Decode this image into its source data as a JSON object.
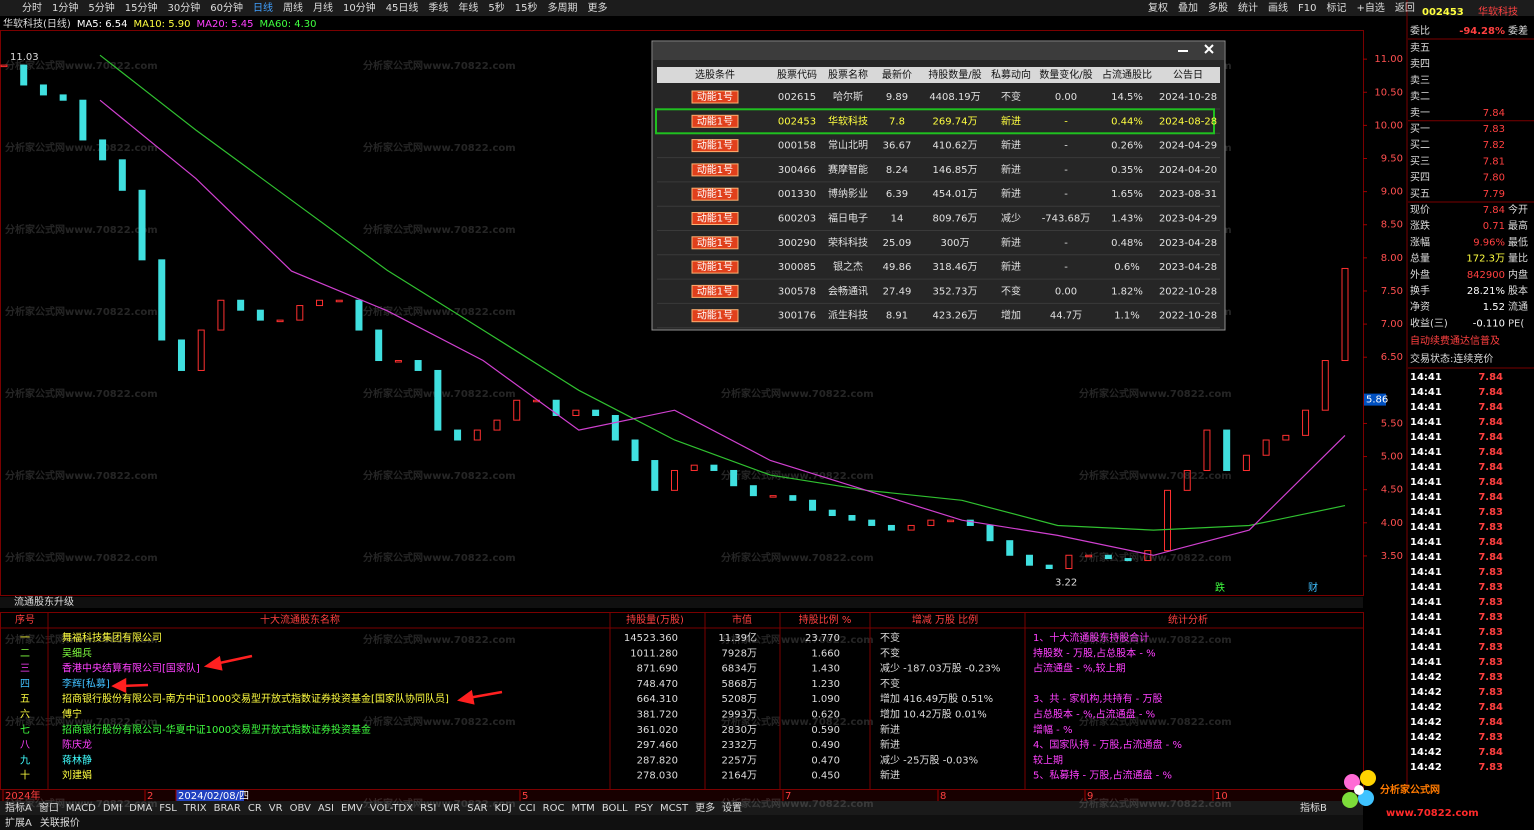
{
  "toolbar": {
    "periods": [
      "分时",
      "1分钟",
      "5分钟",
      "15分钟",
      "30分钟",
      "60分钟",
      "日线",
      "周线",
      "月线",
      "10分钟",
      "45日线",
      "季线",
      "年线",
      "5秒",
      "15秒",
      "多周期",
      "更多"
    ],
    "active_index": 6,
    "tools": [
      "复权",
      "叠加",
      "多股",
      "统计",
      "画线",
      "F10",
      "标记",
      "+自选",
      "返回"
    ]
  },
  "chart": {
    "legend": [
      "华软科技(日线)",
      "MA5: 6.54",
      "MA10: 5.90",
      "MA20: 5.45",
      "MA60: 4.30"
    ],
    "ylim": [
      2.91,
      11.44
    ],
    "yticks": [
      {
        "value": 11,
        "label": "11.00"
      },
      {
        "value": 10.5,
        "label": "10.50"
      },
      {
        "value": 10,
        "label": "10.00"
      },
      {
        "value": 9.5,
        "label": "9.50"
      },
      {
        "value": 9,
        "label": "9.00"
      },
      {
        "value": 8.5,
        "label": "8.50"
      },
      {
        "value": 8,
        "label": "8.00"
      },
      {
        "value": 7.5,
        "label": "7.50"
      },
      {
        "value": 7,
        "label": "7.00"
      },
      {
        "value": 6.5,
        "label": "6.50"
      },
      {
        "value": 5.5,
        "label": "5.50"
      },
      {
        "value": 5,
        "label": "5.00"
      },
      {
        "value": 4.5,
        "label": "4.50"
      },
      {
        "value": 4,
        "label": "4.00"
      },
      {
        "value": 3.5,
        "label": "3.50"
      }
    ],
    "current": {
      "value": 5.86,
      "label": "5.86"
    },
    "high_label": {
      "value": 11.03,
      "label": "11.03"
    },
    "low_label": {
      "value": 3.22,
      "label": "3.22"
    },
    "close": [
      10.91,
      10.61,
      10.46,
      10.38,
      9.78,
      9.48,
      9.02,
      7.97,
      6.76,
      6.3,
      6.91,
      7.36,
      7.21,
      7.06,
      7.06,
      7.28,
      7.36,
      7.36,
      6.91,
      6.45,
      6.45,
      6.3,
      5.4,
      5.25,
      5.4,
      5.55,
      5.85,
      5.85,
      5.62,
      5.7,
      5.62,
      5.25,
      4.94,
      4.49,
      4.79,
      4.87,
      4.79,
      4.56,
      4.41,
      4.41,
      4.34,
      4.19,
      4.11,
      4.04,
      3.96,
      3.89,
      3.96,
      4.04,
      4.04,
      3.96,
      3.73,
      3.51,
      3.36,
      3.31,
      3.51,
      3.51,
      3.46,
      3.43,
      3.58,
      4.49,
      4.79,
      5.4,
      4.79,
      5.02,
      5.25,
      5.32,
      5.7,
      6.45,
      7.84
    ],
    "ma20": [
      10.38,
      9.2,
      7.8,
      7.2,
      6.45,
      5.4,
      5.7,
      4.94,
      4.49,
      4.04,
      3.81,
      3.51,
      3.89,
      5.32
    ],
    "ma60": [
      11.06,
      9.93,
      8.87,
      7.81,
      6.91,
      6.0,
      5.25,
      4.72,
      4.49,
      4.34,
      3.96,
      3.89,
      3.96,
      4.26
    ],
    "markers": [
      "跌",
      "财"
    ]
  },
  "watermark": "分析家公式网www.70822.com",
  "popup": {
    "headers": [
      "选股条件",
      "股票代码",
      "股票名称",
      "最新价",
      "持股数量/股",
      "私募动向",
      "数量变化/股",
      "占流通股比",
      "公告日"
    ],
    "selected_row": 1,
    "rows": [
      [
        "动能1号",
        "002615",
        "哈尔斯",
        "9.89",
        "4408.19万",
        "不变",
        "0.00",
        "14.5%",
        "2024-10-28"
      ],
      [
        "动能1号",
        "002453",
        "华软科技",
        "7.8",
        "269.74万",
        "新进",
        "-",
        "0.44%",
        "2024-08-28"
      ],
      [
        "动能1号",
        "000158",
        "常山北明",
        "36.67",
        "410.62万",
        "新进",
        "-",
        "0.26%",
        "2024-04-29"
      ],
      [
        "动能1号",
        "300466",
        "赛摩智能",
        "8.24",
        "146.85万",
        "新进",
        "-",
        "0.35%",
        "2024-04-20"
      ],
      [
        "动能1号",
        "001330",
        "博纳影业",
        "6.39",
        "454.01万",
        "新进",
        "-",
        "1.65%",
        "2023-08-31"
      ],
      [
        "动能1号",
        "600203",
        "福日电子",
        "14",
        "809.76万",
        "减少",
        "-743.68万",
        "1.43%",
        "2023-04-29"
      ],
      [
        "动能1号",
        "300290",
        "荣科科技",
        "25.09",
        "300万",
        "新进",
        "-",
        "0.48%",
        "2023-04-28"
      ],
      [
        "动能1号",
        "300085",
        "银之杰",
        "49.86",
        "318.46万",
        "新进",
        "-",
        "0.6%",
        "2023-04-28"
      ],
      [
        "动能1号",
        "300578",
        "会畅通讯",
        "27.49",
        "352.73万",
        "不变",
        "0.00",
        "1.82%",
        "2022-10-28"
      ],
      [
        "动能1号",
        "300176",
        "派生科技",
        "8.91",
        "423.26万",
        "增加",
        "44.7万",
        "1.1%",
        "2022-10-28"
      ]
    ]
  },
  "quote": {
    "code": "002453",
    "name": "华软科技",
    "weibi": [
      "委比",
      "-94.28%",
      "委差"
    ],
    "book": [
      {
        "label": "卖五"
      },
      {
        "label": "卖四"
      },
      {
        "label": "卖三"
      },
      {
        "label": "卖二"
      },
      {
        "label": "卖一",
        "price": "7.84"
      },
      {
        "label": "买一",
        "price": "7.83"
      },
      {
        "label": "买二",
        "price": "7.82"
      },
      {
        "label": "买三",
        "price": "7.81"
      },
      {
        "label": "买四",
        "price": "7.80"
      },
      {
        "label": "买五",
        "price": "7.79"
      }
    ],
    "stats": [
      [
        "现价",
        "7.84",
        "今开"
      ],
      [
        "涨跌",
        "0.71",
        "最高"
      ],
      [
        "涨幅",
        "9.96%",
        "最低"
      ],
      [
        "总量",
        "172.3万",
        "量比"
      ],
      [
        "外盘",
        "842900",
        "内盘"
      ],
      [
        "换手",
        "28.21%",
        "股本"
      ],
      [
        "净资",
        "1.52",
        "流通"
      ],
      [
        "收益(三)",
        "-0.110",
        "PE("
      ]
    ],
    "notice": "自动续费通达信普及",
    "status": "交易状态:连续竞价",
    "ticks": [
      [
        "14:41",
        "7.84"
      ],
      [
        "14:41",
        "7.84"
      ],
      [
        "14:41",
        "7.84"
      ],
      [
        "14:41",
        "7.84"
      ],
      [
        "14:41",
        "7.84"
      ],
      [
        "14:41",
        "7.84"
      ],
      [
        "14:41",
        "7.84"
      ],
      [
        "14:41",
        "7.84"
      ],
      [
        "14:41",
        "7.84"
      ],
      [
        "14:41",
        "7.83"
      ],
      [
        "14:41",
        "7.83"
      ],
      [
        "14:41",
        "7.84"
      ],
      [
        "14:41",
        "7.84"
      ],
      [
        "14:41",
        "7.83"
      ],
      [
        "14:41",
        "7.83"
      ],
      [
        "14:41",
        "7.83"
      ],
      [
        "14:41",
        "7.83"
      ],
      [
        "14:41",
        "7.83"
      ],
      [
        "14:41",
        "7.83"
      ],
      [
        "14:41",
        "7.83"
      ],
      [
        "14:42",
        "7.83"
      ],
      [
        "14:42",
        "7.83"
      ],
      [
        "14:42",
        "7.84"
      ],
      [
        "14:42",
        "7.84"
      ],
      [
        "14:42",
        "7.83"
      ],
      [
        "14:42",
        "7.84"
      ],
      [
        "14:42",
        "7.83"
      ]
    ]
  },
  "holders": {
    "title": "流通股东升级",
    "headers": [
      "序号",
      "十大流通股东名称",
      "持股量(万股)",
      "市值",
      "持股比例 %",
      "增减 万股 比例",
      "统计分析"
    ],
    "rows": [
      {
        "no": "一",
        "name": "舞福科技集团有限公司",
        "shares": "14523.360",
        "value": "11.39亿",
        "ratio": "23.770",
        "change": "不变",
        "color": "#ffff40"
      },
      {
        "no": "二",
        "name": "吴细兵",
        "shares": "1011.280",
        "value": "7928万",
        "ratio": "1.660",
        "change": "不变",
        "color": "#80ff40"
      },
      {
        "no": "三",
        "name": "香港中央结算有限公司[国家队]",
        "shares": "871.690",
        "value": "6834万",
        "ratio": "1.430",
        "change": "减少 -187.03万股 -0.23%",
        "color": "#ff40ff"
      },
      {
        "no": "四",
        "name": "李辉[私募]",
        "shares": "748.470",
        "value": "5868万",
        "ratio": "1.230",
        "change": "不变",
        "color": "#40c0ff"
      },
      {
        "no": "五",
        "name": "招商银行股份有限公司-南方中证1000交易型开放式指数证券投资基金[国家队协同队员]",
        "shares": "664.310",
        "value": "5208万",
        "ratio": "1.090",
        "change": "增加 416.49万股 0.51%",
        "color": "#ffff40"
      },
      {
        "no": "六",
        "name": "傅宁",
        "shares": "381.720",
        "value": "2993万",
        "ratio": "0.620",
        "change": "增加 10.42万股 0.01%",
        "color": "#ffff40"
      },
      {
        "no": "七",
        "name": "招商银行股份有限公司-华夏中证1000交易型开放式指数证券投资基金",
        "shares": "361.020",
        "value": "2830万",
        "ratio": "0.590",
        "change": "新进",
        "color": "#40ff40"
      },
      {
        "no": "八",
        "name": "陈庆龙",
        "shares": "297.460",
        "value": "2332万",
        "ratio": "0.490",
        "change": "新进",
        "color": "#ff40ff"
      },
      {
        "no": "九",
        "name": "蒋林静",
        "shares": "287.820",
        "value": "2257万",
        "ratio": "0.470",
        "change": "减少 -25万股 -0.03%",
        "color": "#40ffff"
      },
      {
        "no": "十",
        "name": "刘建娟",
        "shares": "278.030",
        "value": "2164万",
        "ratio": "0.450",
        "change": "新进",
        "color": "#ffff40"
      }
    ],
    "analysis": [
      "1、十大流通股东持股合计",
      "持股数 - 万股,占总股本 - %",
      "占流通盘 - %,较上期",
      null,
      "3、共 - 家机构,共持有 - 万股",
      "占总股本 - %,占流通盘 - %",
      "增幅 - %",
      "4、国家队持 - 万股,占流通盘 - %",
      "较上期",
      "5、私募持 - 万股,占流通盘 - %"
    ]
  },
  "timeaxis": [
    "2024年",
    "2",
    "2024/02/08/四",
    "5",
    "7",
    "8",
    "9",
    "10"
  ],
  "tabs": [
    "指标A",
    "窗口",
    "MACD",
    "DMI",
    "DMA",
    "FSL",
    "TRIX",
    "BRAR",
    "CR",
    "VR",
    "OBV",
    "ASI",
    "EMV",
    "VOL-TDX",
    "RSI",
    "WR",
    "SAR",
    "KDJ",
    "CCI",
    "ROC",
    "MTM",
    "BOLL",
    "PSY",
    "MCST",
    "更多",
    "设置"
  ],
  "tab_right": "指标B",
  "footer": [
    "扩展A",
    "关联报价"
  ],
  "logo": {
    "name": "分析家公式网",
    "url": "www.70822.com"
  }
}
